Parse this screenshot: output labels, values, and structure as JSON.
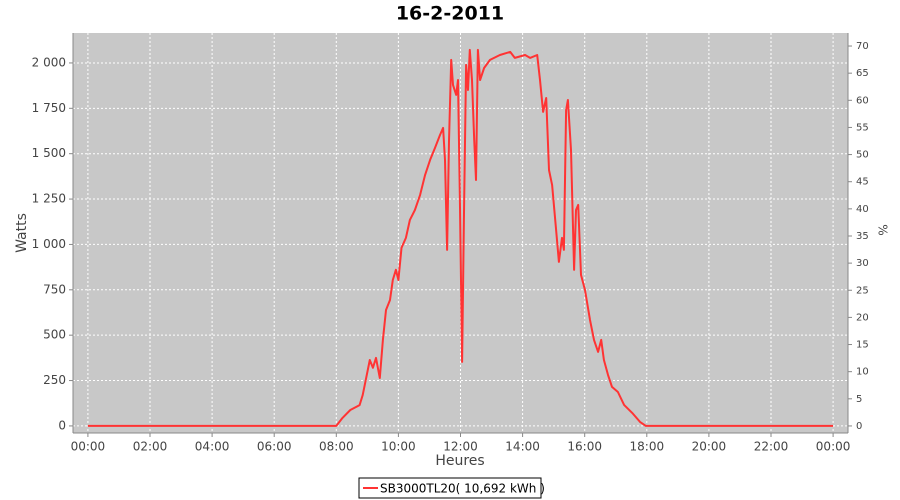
{
  "chart_data": {
    "type": "line",
    "title": "16-2-2011",
    "x_label": "Heures",
    "y_label": "Watts",
    "y2_label": "%",
    "xlim": [
      -0.48,
      24.48
    ],
    "ylim": [
      -39,
      2165
    ],
    "y2lim": [
      -1.3,
      72.4
    ],
    "xticks": [
      {
        "value": 0,
        "label": "00:00"
      },
      {
        "value": 2,
        "label": "02:00"
      },
      {
        "value": 4,
        "label": "04:00"
      },
      {
        "value": 6,
        "label": "06:00"
      },
      {
        "value": 8,
        "label": "08:00"
      },
      {
        "value": 10,
        "label": "10:00"
      },
      {
        "value": 12,
        "label": "12:00"
      },
      {
        "value": 14,
        "label": "14:00"
      },
      {
        "value": 16,
        "label": "16:00"
      },
      {
        "value": 18,
        "label": "18:00"
      },
      {
        "value": 20,
        "label": "20:00"
      },
      {
        "value": 22,
        "label": "22:00"
      },
      {
        "value": 24,
        "label": "00:00"
      }
    ],
    "yticks": [
      0,
      250,
      500,
      750,
      {
        "value": 1000,
        "label": "1 000"
      },
      {
        "value": 1250,
        "label": "1 250"
      },
      {
        "value": 1500,
        "label": "1 500"
      },
      {
        "value": 1750,
        "label": "1 750"
      },
      {
        "value": 2000,
        "label": "2 000"
      }
    ],
    "y2ticks": [
      0,
      5,
      10,
      15,
      20,
      25,
      30,
      35,
      40,
      45,
      50,
      55,
      60,
      65,
      70
    ],
    "grid": true,
    "legend": "bottom",
    "x": [
      0,
      8.0,
      8.2,
      8.45,
      8.75,
      8.85,
      9.08,
      9.18,
      9.28,
      9.4,
      9.5,
      9.6,
      9.73,
      9.82,
      9.92,
      10.0,
      10.1,
      10.24,
      10.37,
      10.53,
      10.7,
      10.86,
      11.02,
      11.18,
      11.34,
      11.44,
      11.5,
      11.57,
      11.63,
      11.7,
      11.76,
      11.86,
      11.92,
      11.98,
      12.05,
      12.11,
      12.18,
      12.24,
      12.3,
      12.37,
      12.44,
      12.5,
      12.56,
      12.63,
      12.76,
      12.95,
      13.27,
      13.6,
      13.75,
      14.08,
      14.24,
      14.47,
      14.56,
      14.66,
      14.76,
      14.85,
      14.95,
      15.08,
      15.17,
      15.27,
      15.33,
      15.4,
      15.46,
      15.56,
      15.66,
      15.72,
      15.79,
      15.88,
      16.01,
      16.17,
      16.3,
      16.43,
      16.53,
      16.62,
      16.75,
      16.88,
      17.07,
      17.27,
      17.53,
      17.78,
      17.97,
      24
    ],
    "series": [
      {
        "name": "SB3000TL20( 10,692 kWh )",
        "color": "#ff3333",
        "values": [
          0,
          0,
          44,
          88,
          115,
          170,
          363,
          320,
          375,
          264,
          474,
          639,
          694,
          804,
          860,
          804,
          981,
          1036,
          1135,
          1190,
          1273,
          1383,
          1466,
          1532,
          1603,
          1642,
          1465,
          970,
          1570,
          2017,
          1879,
          1824,
          1906,
          1245,
          353,
          1135,
          1989,
          1851,
          2072,
          1906,
          1576,
          1355,
          2072,
          1906,
          1972,
          2017,
          2044,
          2061,
          2028,
          2044,
          2028,
          2044,
          1906,
          1730,
          1807,
          1410,
          1328,
          1080,
          904,
          1036,
          970,
          1741,
          1796,
          1521,
          860,
          1190,
          1218,
          832,
          749,
          584,
          474,
          408,
          474,
          364,
          281,
          215,
          187,
          116,
          72,
          22,
          0,
          0
        ]
      }
    ]
  }
}
